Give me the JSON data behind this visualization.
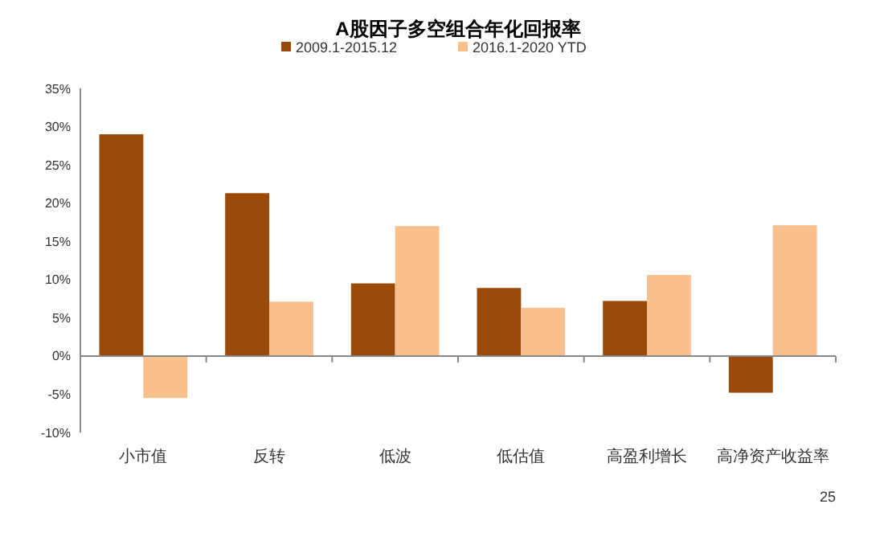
{
  "chart_data": {
    "type": "bar",
    "title": "A股因子多空组合年化回报率",
    "categories": [
      "小市值",
      "反转",
      "低波",
      "低估值",
      "高盈利增长",
      "高净资产收益率"
    ],
    "series": [
      {
        "name": "2009.1-2015.12",
        "color": "#9c4a0a",
        "values": [
          29.0,
          21.3,
          9.5,
          8.9,
          7.2,
          -4.8
        ]
      },
      {
        "name": "2016.1-2020 YTD",
        "color": "#f9c08e",
        "values": [
          -5.5,
          7.1,
          17.0,
          6.3,
          10.6,
          17.1
        ]
      }
    ],
    "ylim": [
      -10,
      35
    ],
    "yticks": [
      {
        "value": -10,
        "label": "-10%"
      },
      {
        "value": -5,
        "label": "-5%"
      },
      {
        "value": 0,
        "label": "0%"
      },
      {
        "value": 5,
        "label": "5%"
      },
      {
        "value": 10,
        "label": "10%"
      },
      {
        "value": 15,
        "label": "15%"
      },
      {
        "value": 20,
        "label": "20%"
      },
      {
        "value": 25,
        "label": "25%"
      },
      {
        "value": 30,
        "label": "30%"
      },
      {
        "value": 35,
        "label": "35%"
      }
    ],
    "legend": "top",
    "annotations": [
      "25"
    ]
  }
}
